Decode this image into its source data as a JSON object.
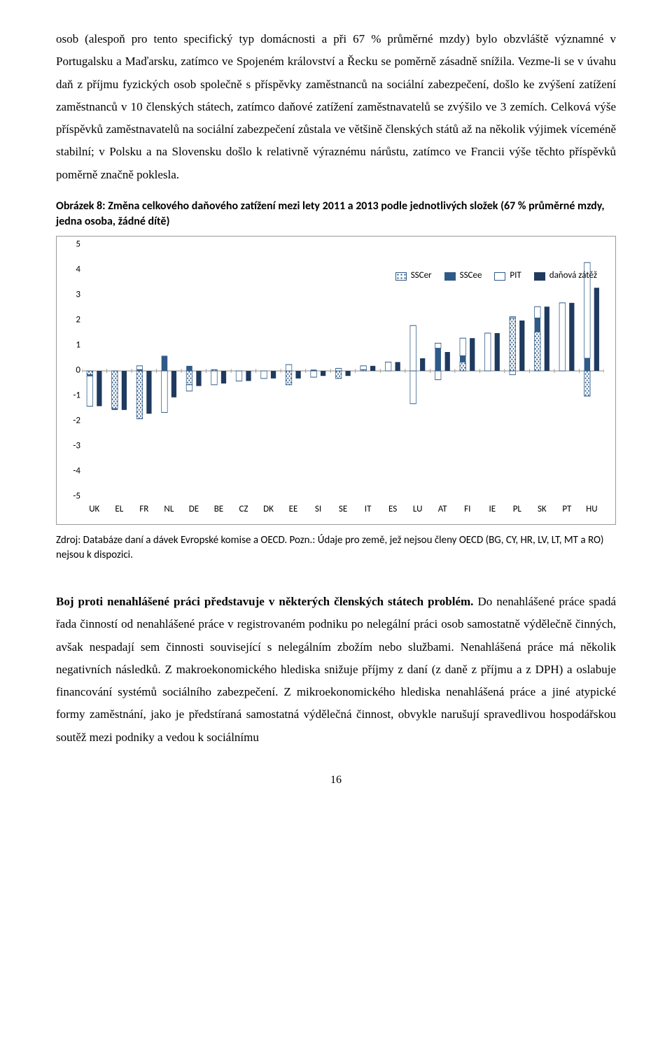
{
  "para1": "osob (alespoň pro tento specifický typ domácnosti a při 67 % průměrné mzdy) bylo obzvláště významné v Portugalsku a Maďarsku, zatímco ve Spojeném království a Řecku se poměrně zásadně snížila. Vezme-li se v úvahu daň z příjmu fyzických osob společně s příspěvky zaměstnanců na sociální zabezpečení, došlo ke zvýšení zatížení zaměstnanců v 10 členských státech, zatímco daňové zatížení zaměstnavatelů se zvýšilo ve 3 zemích. Celková výše příspěvků zaměstnavatelů na sociální zabezpečení zůstala ve většině členských států až na několik výjimek víceméně stabilní; v Polsku a na Slovensku došlo k relativně výraznému nárůstu, zatímco ve Francii výše těchto příspěvků poměrně značně poklesla.",
  "fig_title": "Obrázek 8: Změna celkového daňového zatížení mezi lety 2011 a 2013 podle jednotlivých složek (67 % průměrné mzdy, jedna osoba, žádné dítě)",
  "chart": {
    "type": "stacked-bar",
    "ylim": [
      -5,
      5
    ],
    "ytick_step": 1,
    "categories": [
      "UK",
      "EL",
      "FR",
      "NL",
      "DE",
      "BE",
      "CZ",
      "DK",
      "EE",
      "SI",
      "SE",
      "IT",
      "ES",
      "LU",
      "AT",
      "FI",
      "IE",
      "PL",
      "SK",
      "PT",
      "HU"
    ],
    "legend": [
      {
        "key": "sscer",
        "label": "SSCer",
        "fill": "pattern-dots"
      },
      {
        "key": "sscee",
        "label": "SSCee",
        "fill": "#2f5a87"
      },
      {
        "key": "pit",
        "label": "PIT",
        "fill": "#ffffff",
        "stroke": "#2f5a87"
      },
      {
        "key": "zatez",
        "label": "daňová zátěž",
        "fill": "#1f3a5f"
      }
    ],
    "colors": {
      "sscer_pattern_fg": "#2f5a87",
      "sscer_pattern_bg": "#ffffff",
      "sscee": "#2f5a87",
      "pit_fill": "#ffffff",
      "pit_stroke": "#2f5a87",
      "zatez": "#1f3a5f",
      "axis": "#888888",
      "tickmark": "#888888",
      "background": "#ffffff"
    },
    "bar_rel_width": 0.24,
    "bar_gap": 0.06,
    "series_pos": {
      "UK": {
        "sscer": 0.0,
        "sscee": 0.0,
        "pit": 0.0
      },
      "EL": {
        "sscer": 0.0,
        "sscee": 0.0,
        "pit": 0.0
      },
      "FR": {
        "sscer": 0.0,
        "sscee": 0.05,
        "pit": 0.15
      },
      "NL": {
        "sscer": 0.0,
        "sscee": 0.6,
        "pit": 0.0
      },
      "DE": {
        "sscer": 0.0,
        "sscee": 0.2,
        "pit": 0.0
      },
      "BE": {
        "sscer": 0.05,
        "sscee": 0.0,
        "pit": 0.0
      },
      "CZ": {
        "sscer": 0.0,
        "sscee": 0.0,
        "pit": 0.0
      },
      "DK": {
        "sscer": 0.0,
        "sscee": 0.0,
        "pit": 0.0
      },
      "EE": {
        "sscer": 0.0,
        "sscee": 0.0,
        "pit": 0.25
      },
      "SI": {
        "sscer": 0.0,
        "sscee": 0.05,
        "pit": 0.0
      },
      "SE": {
        "sscer": 0.0,
        "sscee": 0.0,
        "pit": 0.1
      },
      "IT": {
        "sscer": 0.05,
        "sscee": 0.0,
        "pit": 0.15
      },
      "ES": {
        "sscer": 0.0,
        "sscee": 0.0,
        "pit": 0.35
      },
      "LU": {
        "sscer": 0.0,
        "sscee": 0.0,
        "pit": 1.8
      },
      "AT": {
        "sscer": 0.0,
        "sscee": 0.9,
        "pit": 0.2
      },
      "FI": {
        "sscer": 0.35,
        "sscee": 0.25,
        "pit": 0.7
      },
      "IE": {
        "sscer": 0.0,
        "sscee": 0.0,
        "pit": 1.5
      },
      "PL": {
        "sscer": 2.1,
        "sscee": 0.0,
        "pit": 0.05
      },
      "SK": {
        "sscer": 1.55,
        "sscee": 0.55,
        "pit": 0.45
      },
      "PT": {
        "sscer": 0.0,
        "sscee": 0.0,
        "pit": 2.7
      },
      "HU": {
        "sscer": 0.0,
        "sscee": 0.5,
        "pit": 3.8
      }
    },
    "series_neg": {
      "UK": {
        "sscer": -0.15,
        "sscee": -0.05,
        "pit": -1.2
      },
      "EL": {
        "sscer": -1.5,
        "sscee": -0.05,
        "pit": 0.0
      },
      "FR": {
        "sscer": -1.9,
        "sscee": 0.0,
        "pit": 0.0
      },
      "NL": {
        "sscer": 0.0,
        "sscee": 0.0,
        "pit": -1.65
      },
      "DE": {
        "sscer": -0.55,
        "sscee": 0.0,
        "pit": -0.25
      },
      "BE": {
        "sscer": 0.0,
        "sscee": 0.0,
        "pit": -0.55
      },
      "CZ": {
        "sscer": 0.0,
        "sscee": 0.0,
        "pit": -0.4
      },
      "DK": {
        "sscer": 0.0,
        "sscee": 0.0,
        "pit": -0.3
      },
      "EE": {
        "sscer": -0.55,
        "sscee": 0.0,
        "pit": 0.0
      },
      "SI": {
        "sscer": 0.0,
        "sscee": 0.0,
        "pit": -0.25
      },
      "SE": {
        "sscer": -0.3,
        "sscee": 0.0,
        "pit": 0.0
      },
      "IT": {
        "sscer": 0.0,
        "sscee": 0.0,
        "pit": 0.0
      },
      "ES": {
        "sscer": 0.0,
        "sscee": 0.0,
        "pit": 0.0
      },
      "LU": {
        "sscer": 0.0,
        "sscee": 0.0,
        "pit": -1.3
      },
      "AT": {
        "sscer": 0.0,
        "sscee": 0.0,
        "pit": -0.35
      },
      "FI": {
        "sscer": 0.0,
        "sscee": 0.0,
        "pit": 0.0
      },
      "IE": {
        "sscer": 0.0,
        "sscee": 0.0,
        "pit": 0.0
      },
      "PL": {
        "sscer": 0.0,
        "sscee": 0.0,
        "pit": -0.15
      },
      "SK": {
        "sscer": 0.0,
        "sscee": 0.0,
        "pit": 0.0
      },
      "PT": {
        "sscer": 0.0,
        "sscee": 0.0,
        "pit": 0.0
      },
      "HU": {
        "sscer": -1.0,
        "sscee": 0.0,
        "pit": 0.0
      }
    },
    "zatez": {
      "UK": -1.4,
      "EL": -1.55,
      "FR": -1.7,
      "NL": -1.05,
      "DE": -0.6,
      "BE": -0.5,
      "CZ": -0.4,
      "DK": -0.3,
      "EE": -0.3,
      "SI": -0.2,
      "SE": -0.2,
      "IT": 0.2,
      "ES": 0.35,
      "LU": 0.5,
      "AT": 0.75,
      "FI": 1.3,
      "IE": 1.5,
      "PL": 2.0,
      "SK": 2.55,
      "PT": 2.7,
      "HU": 3.3
    }
  },
  "source": "Zdroj: Databáze daní a dávek Evropské komise a OECD. Pozn.: Údaje pro země, jež nejsou členy OECD (BG, CY, HR, LV, LT, MT a RO) nejsou k dispozici.",
  "para2_bold": "Boj proti nenahlášené práci představuje v některých členských státech problém.",
  "para2_rest": " Do nenahlášené práce spadá řada činností od nenahlášené práce v registrovaném podniku po nelegální práci osob samostatně výdělečně činných, avšak nespadají sem činnosti související s nelegálním zbožím nebo službami.  Nenahlášená práce má několik negativních následků. Z makroekonomického hlediska snižuje příjmy z daní (z daně z příjmu a z DPH) a oslabuje financování systémů sociálního zabezpečení. Z mikroekonomického hlediska nenahlášená práce a jiné atypické formy zaměstnání, jako je předstíraná samostatná výdělečná činnost, obvykle narušují spravedlivou hospodářskou soutěž mezi podniky a vedou k sociálnímu",
  "page_number": "16"
}
